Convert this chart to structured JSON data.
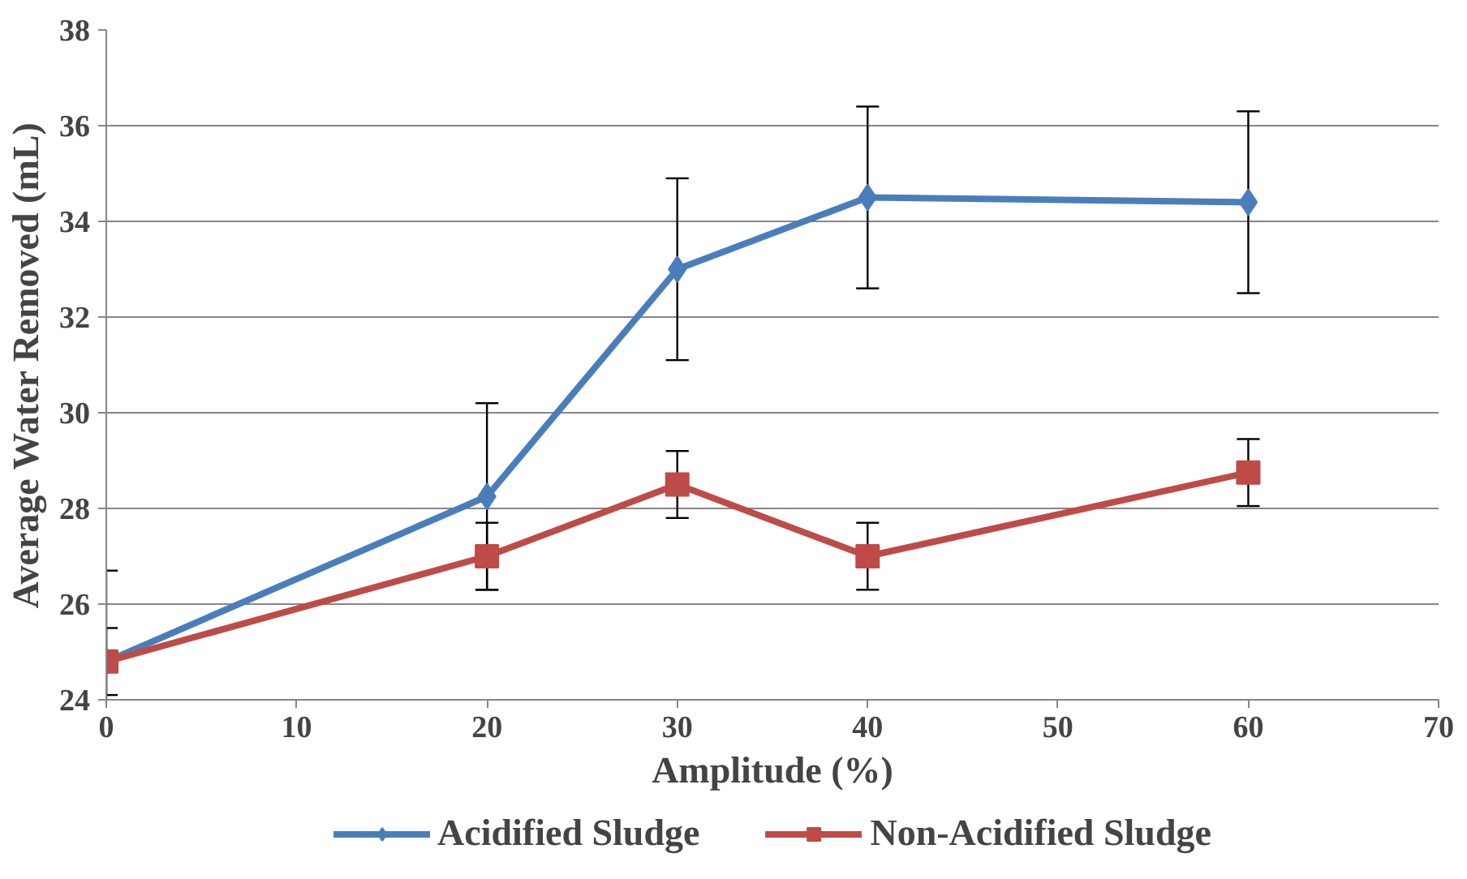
{
  "chart_data": {
    "type": "line",
    "xlabel": "Amplitude (%)",
    "ylabel": "Average Water Removed (mL)",
    "x": [
      0,
      20,
      30,
      40,
      60
    ],
    "series": [
      {
        "name": "Acidified Sludge",
        "color": "#4a7ebb",
        "marker": "diamond",
        "values": [
          24.8,
          28.25,
          33,
          34.5,
          34.4
        ],
        "errors": [
          [
            24,
            26.7
          ],
          1.95,
          1.9,
          1.9,
          1.9
        ]
      },
      {
        "name": "Non-Acidified Sludge",
        "color": "#be4b48",
        "marker": "square",
        "values": [
          24.8,
          27,
          28.5,
          27,
          28.75
        ],
        "errors": [
          0.7,
          0.7,
          0.7,
          0.7,
          0.7
        ]
      }
    ],
    "xlim": [
      0,
      70
    ],
    "xticks": [
      0,
      10,
      20,
      30,
      40,
      50,
      60,
      70
    ],
    "ylim": [
      24,
      38
    ],
    "yticks": [
      24,
      26,
      28,
      30,
      32,
      34,
      36,
      38
    ],
    "grid": "y",
    "legend": "bottom",
    "line_style": "solid"
  }
}
